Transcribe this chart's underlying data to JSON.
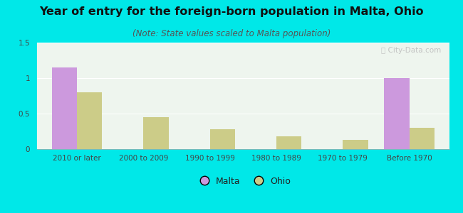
{
  "title": "Year of entry for the foreign-born population in Malta, Ohio",
  "subtitle": "(Note: State values scaled to Malta population)",
  "categories": [
    "2010 or later",
    "2000 to 2009",
    "1990 to 1999",
    "1980 to 1989",
    "1970 to 1979",
    "Before 1970"
  ],
  "malta_values": [
    1.15,
    0,
    0,
    0,
    0,
    1.0
  ],
  "ohio_values": [
    0.8,
    0.45,
    0.28,
    0.18,
    0.13,
    0.3
  ],
  "malta_color": "#cc99dd",
  "ohio_color": "#cccc88",
  "background_color": "#00e8e8",
  "plot_bg_color": "#eef5ee",
  "ylim": [
    0,
    1.5
  ],
  "yticks": [
    0,
    0.5,
    1.0,
    1.5
  ],
  "bar_width": 0.38,
  "title_fontsize": 11.5,
  "subtitle_fontsize": 8.5,
  "tick_fontsize": 7.5,
  "legend_fontsize": 9
}
